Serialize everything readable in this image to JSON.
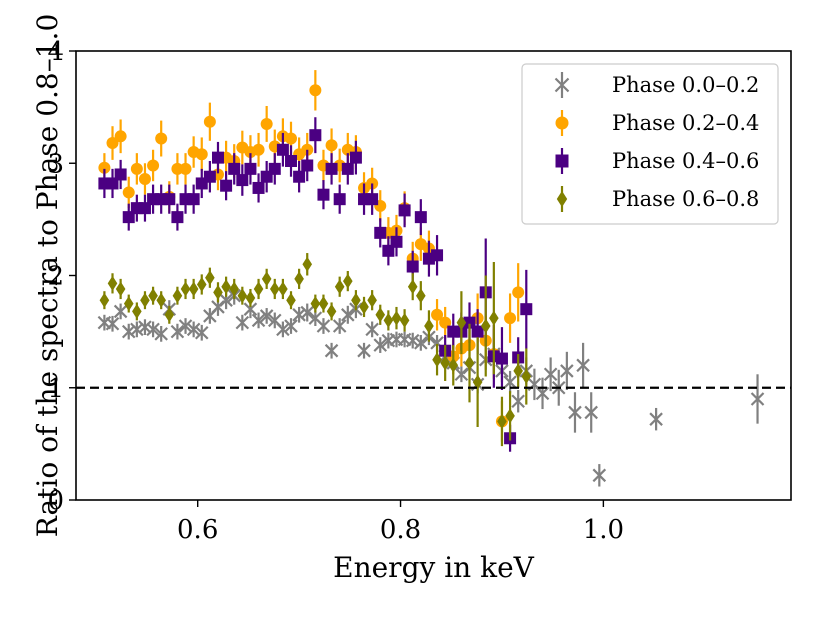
{
  "chart_data": {
    "type": "scatter",
    "title": "",
    "xlabel": "Energy in keV",
    "ylabel": "Ratio of the spectra to Phase 0.8–1.0",
    "xlim": [
      0.48,
      1.185
    ],
    "ylim": [
      0,
      4
    ],
    "xticks": [
      0.6,
      0.8,
      1.0
    ],
    "xtick_labels": [
      "0.6",
      "0.8",
      "1.0"
    ],
    "yticks": [
      0,
      1,
      2,
      3,
      4
    ],
    "ytick_labels": [
      "0",
      "1",
      "2",
      "3",
      "4"
    ],
    "grid": false,
    "legend_position": "top-right",
    "reference_line": {
      "y": 1.0,
      "style": "dashed",
      "color": "#000000"
    },
    "series": [
      {
        "name": "Phase 0.0–0.2",
        "marker": "x",
        "color": "#808080",
        "points": [
          [
            0.508,
            1.58,
            0.07
          ],
          [
            0.516,
            1.57,
            0.07
          ],
          [
            0.524,
            1.68,
            0.07
          ],
          [
            0.532,
            1.5,
            0.07
          ],
          [
            0.54,
            1.52,
            0.07
          ],
          [
            0.548,
            1.54,
            0.07
          ],
          [
            0.556,
            1.52,
            0.07
          ],
          [
            0.564,
            1.48,
            0.07
          ],
          [
            0.572,
            1.7,
            0.08
          ],
          [
            0.58,
            1.5,
            0.07
          ],
          [
            0.588,
            1.55,
            0.07
          ],
          [
            0.596,
            1.52,
            0.07
          ],
          [
            0.604,
            1.49,
            0.07
          ],
          [
            0.612,
            1.64,
            0.07
          ],
          [
            0.62,
            1.72,
            0.08
          ],
          [
            0.628,
            1.78,
            0.08
          ],
          [
            0.636,
            1.82,
            0.08
          ],
          [
            0.644,
            1.58,
            0.07
          ],
          [
            0.652,
            1.7,
            0.08
          ],
          [
            0.66,
            1.6,
            0.07
          ],
          [
            0.668,
            1.64,
            0.07
          ],
          [
            0.676,
            1.6,
            0.07
          ],
          [
            0.684,
            1.52,
            0.07
          ],
          [
            0.692,
            1.55,
            0.07
          ],
          [
            0.7,
            1.65,
            0.07
          ],
          [
            0.708,
            1.67,
            0.08
          ],
          [
            0.716,
            1.62,
            0.07
          ],
          [
            0.724,
            1.55,
            0.07
          ],
          [
            0.732,
            1.33,
            0.07
          ],
          [
            0.74,
            1.55,
            0.07
          ],
          [
            0.748,
            1.65,
            0.08
          ],
          [
            0.756,
            1.7,
            0.08
          ],
          [
            0.764,
            1.33,
            0.07
          ],
          [
            0.772,
            1.52,
            0.07
          ],
          [
            0.78,
            1.38,
            0.07
          ],
          [
            0.788,
            1.42,
            0.07
          ],
          [
            0.796,
            1.43,
            0.07
          ],
          [
            0.804,
            1.43,
            0.07
          ],
          [
            0.812,
            1.42,
            0.07
          ],
          [
            0.82,
            1.4,
            0.07
          ],
          [
            0.828,
            1.45,
            0.07
          ],
          [
            0.836,
            1.4,
            0.07
          ],
          [
            0.844,
            1.28,
            0.07
          ],
          [
            0.852,
            1.22,
            0.07
          ],
          [
            0.86,
            1.12,
            0.07
          ],
          [
            0.868,
            1.18,
            0.08
          ],
          [
            0.876,
            1.03,
            0.08
          ],
          [
            0.884,
            1.25,
            0.09
          ],
          [
            0.892,
            1.3,
            0.1
          ],
          [
            0.9,
            1.15,
            0.1
          ],
          [
            0.908,
            1.05,
            0.1
          ],
          [
            0.916,
            0.88,
            0.1
          ],
          [
            0.924,
            1.15,
            0.12
          ],
          [
            0.932,
            1.03,
            0.14
          ],
          [
            0.94,
            0.95,
            0.14
          ],
          [
            0.948,
            1.12,
            0.15
          ],
          [
            0.956,
            1.0,
            0.16
          ],
          [
            0.964,
            1.15,
            0.17
          ],
          [
            0.972,
            0.78,
            0.18
          ],
          [
            0.98,
            1.2,
            0.2
          ],
          [
            0.988,
            0.78,
            0.18
          ],
          [
            0.996,
            0.22,
            0.1
          ],
          [
            1.052,
            0.72,
            0.1
          ],
          [
            1.152,
            0.9,
            0.22
          ]
        ]
      },
      {
        "name": "Phase 0.2–0.4",
        "marker": "o",
        "color": "#FFA500",
        "points": [
          [
            0.508,
            2.96,
            0.13
          ],
          [
            0.516,
            3.18,
            0.15
          ],
          [
            0.524,
            3.24,
            0.15
          ],
          [
            0.532,
            2.74,
            0.14
          ],
          [
            0.54,
            2.95,
            0.14
          ],
          [
            0.548,
            2.86,
            0.14
          ],
          [
            0.556,
            2.98,
            0.14
          ],
          [
            0.564,
            3.22,
            0.16
          ],
          [
            0.572,
            2.7,
            0.14
          ],
          [
            0.58,
            2.95,
            0.14
          ],
          [
            0.588,
            2.95,
            0.14
          ],
          [
            0.596,
            3.1,
            0.14
          ],
          [
            0.604,
            3.08,
            0.15
          ],
          [
            0.612,
            3.37,
            0.17
          ],
          [
            0.62,
            2.9,
            0.14
          ],
          [
            0.628,
            3.05,
            0.15
          ],
          [
            0.636,
            3.02,
            0.15
          ],
          [
            0.644,
            3.14,
            0.15
          ],
          [
            0.652,
            3.1,
            0.15
          ],
          [
            0.66,
            3.12,
            0.15
          ],
          [
            0.668,
            3.35,
            0.16
          ],
          [
            0.676,
            3.15,
            0.15
          ],
          [
            0.684,
            3.24,
            0.16
          ],
          [
            0.692,
            3.22,
            0.15
          ],
          [
            0.7,
            3.08,
            0.15
          ],
          [
            0.708,
            3.12,
            0.15
          ],
          [
            0.716,
            3.65,
            0.18
          ],
          [
            0.724,
            2.98,
            0.14
          ],
          [
            0.732,
            3.16,
            0.15
          ],
          [
            0.74,
            2.98,
            0.15
          ],
          [
            0.748,
            3.12,
            0.15
          ],
          [
            0.756,
            3.1,
            0.15
          ],
          [
            0.764,
            2.78,
            0.14
          ],
          [
            0.772,
            2.82,
            0.14
          ],
          [
            0.78,
            2.62,
            0.14
          ],
          [
            0.788,
            2.38,
            0.14
          ],
          [
            0.796,
            2.4,
            0.14
          ],
          [
            0.804,
            2.6,
            0.15
          ],
          [
            0.812,
            2.15,
            0.15
          ],
          [
            0.82,
            2.28,
            0.15
          ],
          [
            0.828,
            2.24,
            0.16
          ],
          [
            0.836,
            1.65,
            0.14
          ],
          [
            0.844,
            1.58,
            0.14
          ],
          [
            0.852,
            1.28,
            0.16
          ],
          [
            0.86,
            1.35,
            0.16
          ],
          [
            0.868,
            1.38,
            0.18
          ],
          [
            0.876,
            1.62,
            0.22
          ],
          [
            0.884,
            1.42,
            0.22
          ],
          [
            0.892,
            1.3,
            0.22
          ],
          [
            0.9,
            0.7,
            0.18
          ],
          [
            0.908,
            1.62,
            0.22
          ],
          [
            0.916,
            1.85,
            0.26
          ]
        ]
      },
      {
        "name": "Phase 0.4–0.6",
        "marker": "s",
        "color": "#4B0082",
        "points": [
          [
            0.508,
            2.82,
            0.13
          ],
          [
            0.516,
            2.82,
            0.13
          ],
          [
            0.524,
            2.9,
            0.13
          ],
          [
            0.532,
            2.52,
            0.12
          ],
          [
            0.54,
            2.6,
            0.12
          ],
          [
            0.548,
            2.6,
            0.12
          ],
          [
            0.556,
            2.68,
            0.13
          ],
          [
            0.564,
            2.68,
            0.13
          ],
          [
            0.572,
            2.68,
            0.13
          ],
          [
            0.58,
            2.52,
            0.12
          ],
          [
            0.588,
            2.68,
            0.13
          ],
          [
            0.596,
            2.68,
            0.13
          ],
          [
            0.604,
            2.82,
            0.13
          ],
          [
            0.612,
            2.88,
            0.14
          ],
          [
            0.62,
            3.05,
            0.14
          ],
          [
            0.628,
            2.8,
            0.13
          ],
          [
            0.636,
            2.95,
            0.14
          ],
          [
            0.644,
            2.85,
            0.14
          ],
          [
            0.652,
            2.95,
            0.14
          ],
          [
            0.66,
            2.78,
            0.13
          ],
          [
            0.668,
            2.88,
            0.14
          ],
          [
            0.676,
            2.95,
            0.14
          ],
          [
            0.684,
            3.12,
            0.15
          ],
          [
            0.692,
            3.02,
            0.14
          ],
          [
            0.7,
            2.88,
            0.14
          ],
          [
            0.708,
            2.98,
            0.14
          ],
          [
            0.716,
            3.25,
            0.16
          ],
          [
            0.724,
            2.72,
            0.13
          ],
          [
            0.732,
            2.95,
            0.14
          ],
          [
            0.74,
            2.68,
            0.13
          ],
          [
            0.748,
            2.95,
            0.14
          ],
          [
            0.756,
            3.05,
            0.15
          ],
          [
            0.764,
            2.68,
            0.14
          ],
          [
            0.772,
            2.68,
            0.14
          ],
          [
            0.78,
            2.38,
            0.13
          ],
          [
            0.788,
            2.22,
            0.13
          ],
          [
            0.796,
            2.3,
            0.13
          ],
          [
            0.804,
            2.58,
            0.15
          ],
          [
            0.812,
            2.08,
            0.14
          ],
          [
            0.82,
            2.52,
            0.16
          ],
          [
            0.828,
            2.15,
            0.16
          ],
          [
            0.836,
            2.18,
            0.18
          ],
          [
            0.844,
            1.33,
            0.14
          ],
          [
            0.852,
            1.5,
            0.16
          ],
          [
            0.86,
            1.5,
            0.17
          ],
          [
            0.868,
            1.58,
            0.18
          ],
          [
            0.876,
            1.5,
            0.2
          ],
          [
            0.884,
            1.85,
            0.48
          ],
          [
            0.892,
            1.28,
            0.28
          ],
          [
            0.9,
            1.26,
            0.28
          ],
          [
            0.908,
            0.55,
            0.12
          ],
          [
            0.916,
            1.27,
            0.18
          ],
          [
            0.924,
            1.7,
            0.35
          ]
        ]
      },
      {
        "name": "Phase 0.6–0.8",
        "marker": "d",
        "color": "#808000",
        "points": [
          [
            0.508,
            1.78,
            0.08
          ],
          [
            0.516,
            1.93,
            0.09
          ],
          [
            0.524,
            1.88,
            0.09
          ],
          [
            0.532,
            1.75,
            0.08
          ],
          [
            0.54,
            1.68,
            0.08
          ],
          [
            0.548,
            1.78,
            0.08
          ],
          [
            0.556,
            1.82,
            0.08
          ],
          [
            0.564,
            1.78,
            0.08
          ],
          [
            0.572,
            1.65,
            0.08
          ],
          [
            0.58,
            1.82,
            0.08
          ],
          [
            0.588,
            1.88,
            0.09
          ],
          [
            0.596,
            1.88,
            0.09
          ],
          [
            0.604,
            1.92,
            0.09
          ],
          [
            0.612,
            1.98,
            0.09
          ],
          [
            0.62,
            1.85,
            0.09
          ],
          [
            0.628,
            1.9,
            0.09
          ],
          [
            0.636,
            1.88,
            0.09
          ],
          [
            0.644,
            1.82,
            0.08
          ],
          [
            0.652,
            1.8,
            0.08
          ],
          [
            0.66,
            1.88,
            0.09
          ],
          [
            0.668,
            1.97,
            0.09
          ],
          [
            0.676,
            1.88,
            0.09
          ],
          [
            0.684,
            1.88,
            0.09
          ],
          [
            0.692,
            1.78,
            0.08
          ],
          [
            0.7,
            1.97,
            0.09
          ],
          [
            0.708,
            2.1,
            0.1
          ],
          [
            0.716,
            1.75,
            0.08
          ],
          [
            0.724,
            1.75,
            0.08
          ],
          [
            0.732,
            1.68,
            0.08
          ],
          [
            0.74,
            1.9,
            0.09
          ],
          [
            0.748,
            1.95,
            0.09
          ],
          [
            0.756,
            1.78,
            0.09
          ],
          [
            0.764,
            1.72,
            0.09
          ],
          [
            0.772,
            1.78,
            0.09
          ],
          [
            0.78,
            1.65,
            0.09
          ],
          [
            0.788,
            1.6,
            0.09
          ],
          [
            0.796,
            1.62,
            0.1
          ],
          [
            0.804,
            1.6,
            0.1
          ],
          [
            0.812,
            1.9,
            0.12
          ],
          [
            0.82,
            1.82,
            0.13
          ],
          [
            0.828,
            1.55,
            0.14
          ],
          [
            0.836,
            1.25,
            0.14
          ],
          [
            0.844,
            1.22,
            0.16
          ],
          [
            0.852,
            1.2,
            0.18
          ],
          [
            0.86,
            1.58,
            0.28
          ],
          [
            0.868,
            1.22,
            0.35
          ],
          [
            0.876,
            1.05,
            0.4
          ],
          [
            0.884,
            1.55,
            0.45
          ],
          [
            0.892,
            1.62,
            0.5
          ],
          [
            0.9,
            0.7,
            0.22
          ],
          [
            0.908,
            0.75,
            0.22
          ],
          [
            0.916,
            1.15,
            0.15
          ],
          [
            0.924,
            1.1,
            0.25
          ]
        ]
      }
    ]
  }
}
